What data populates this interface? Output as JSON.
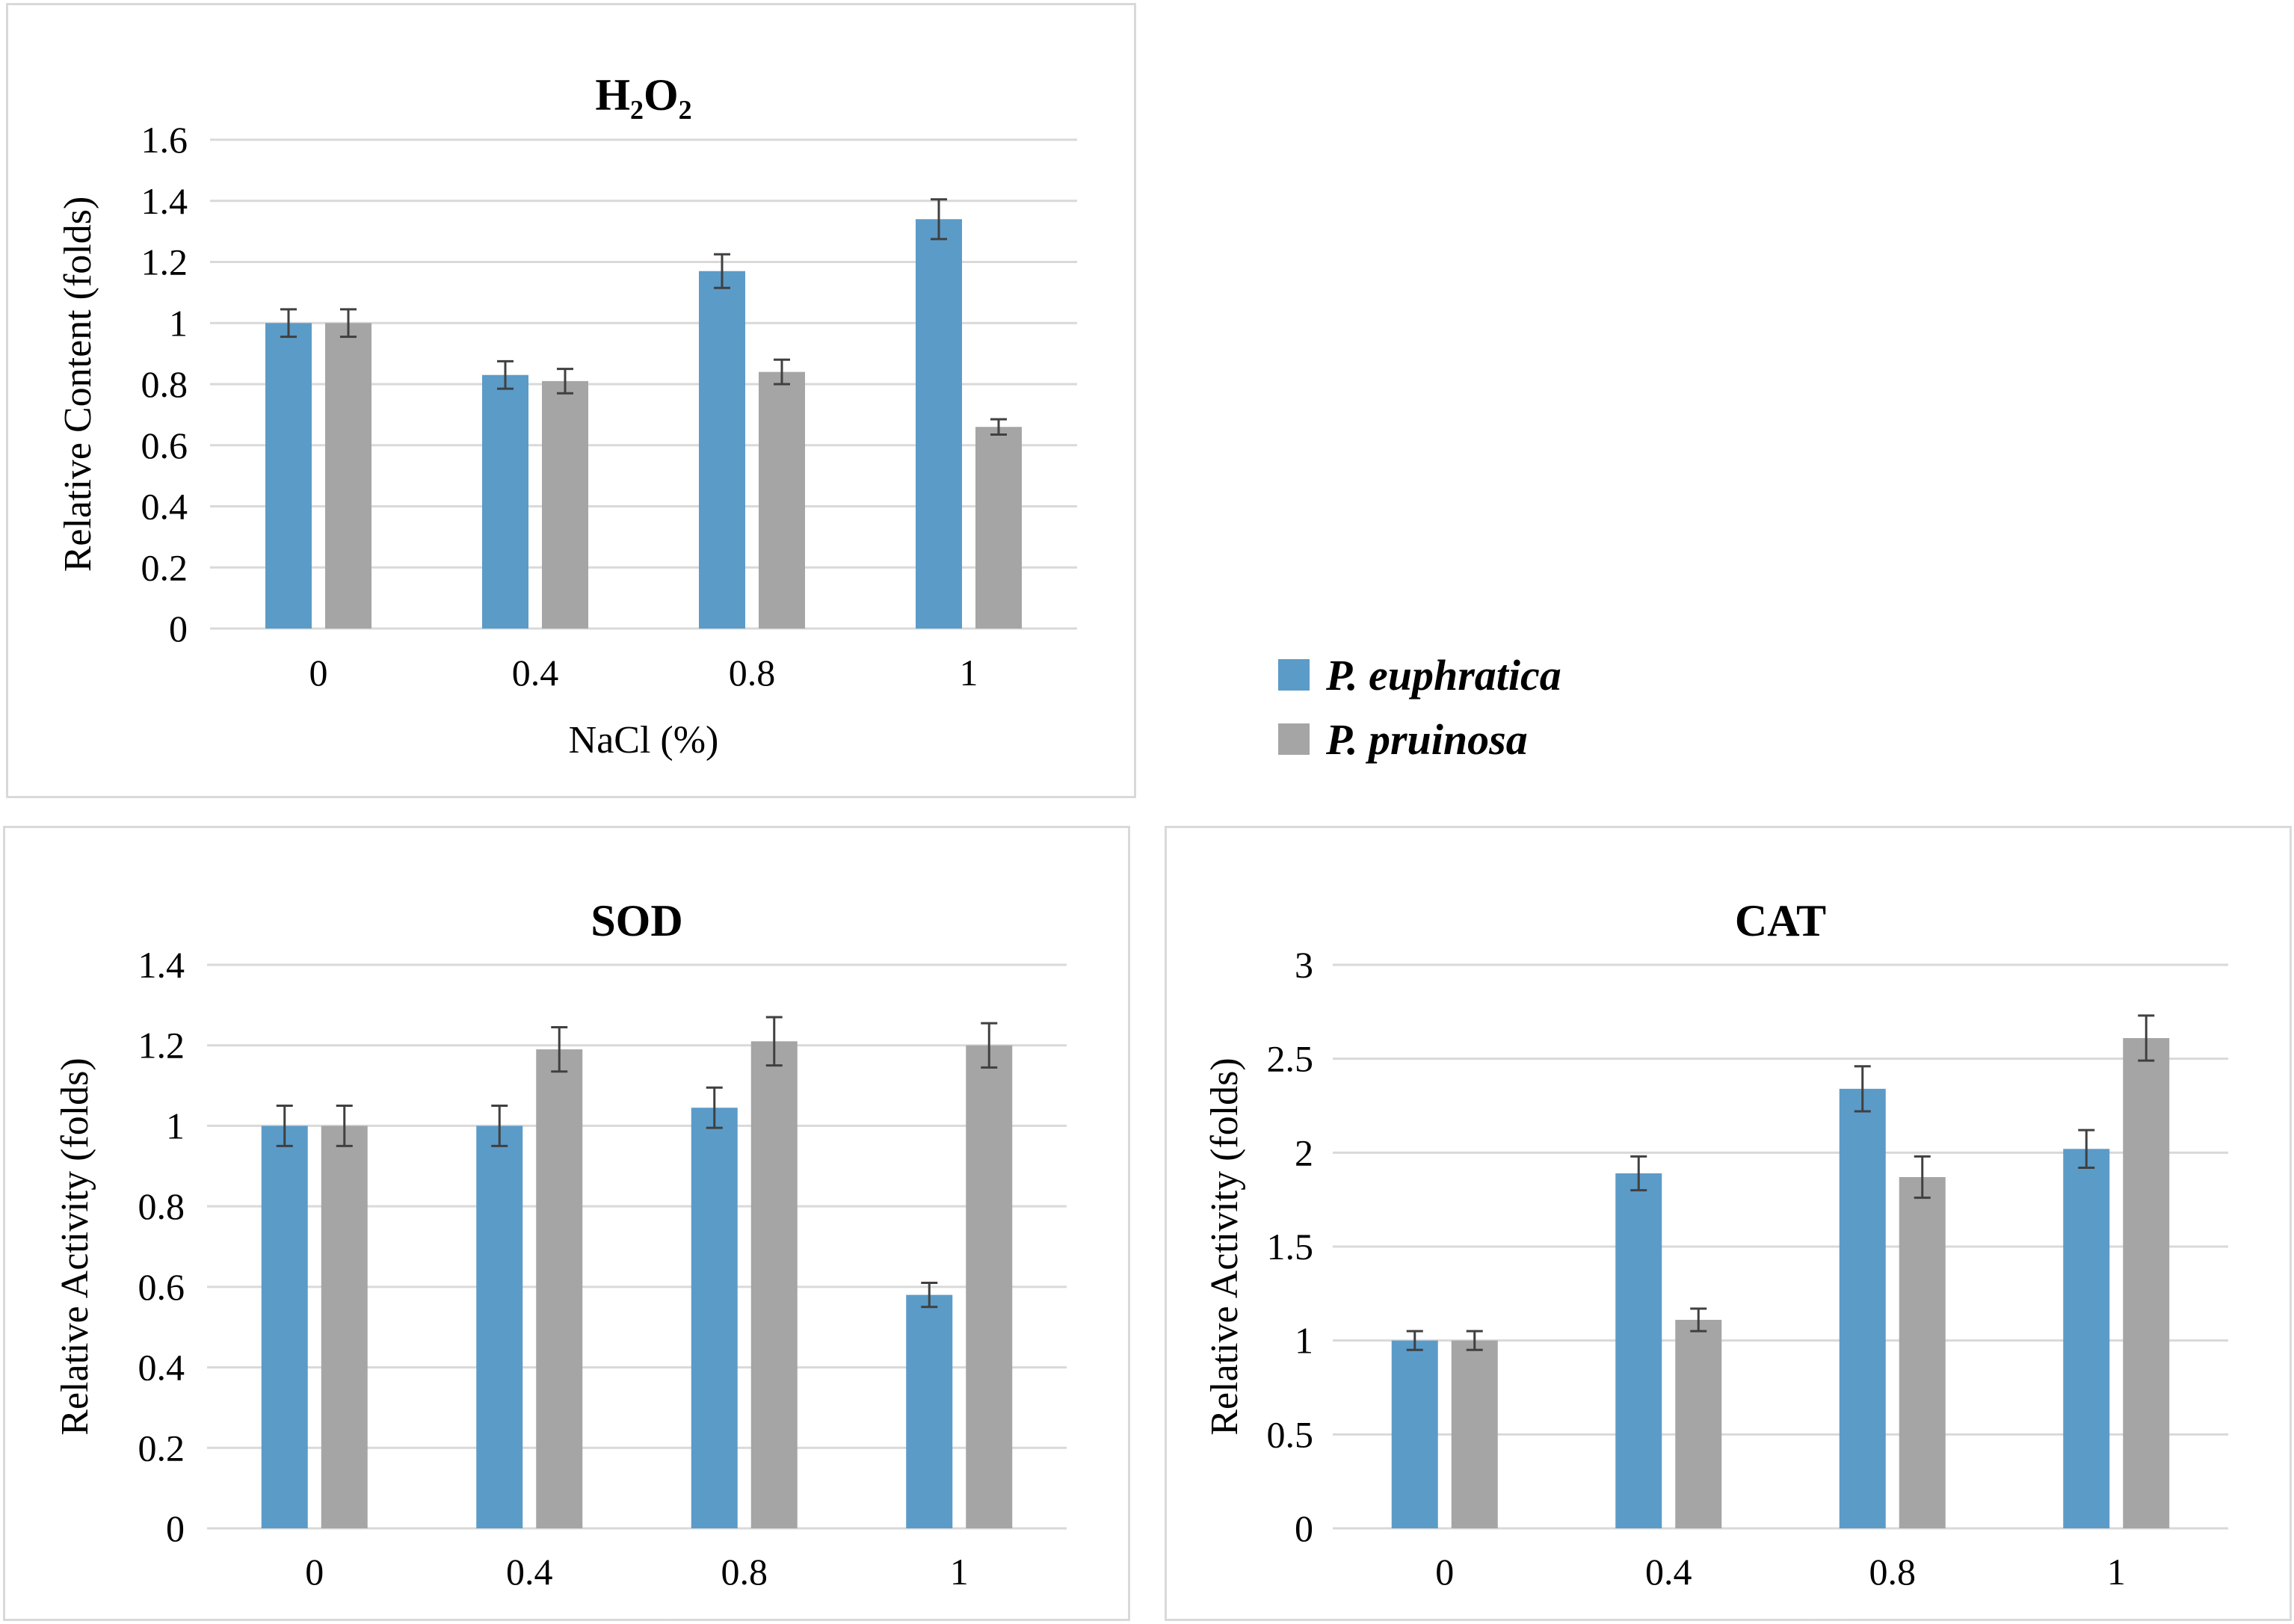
{
  "colors": {
    "euphratica": "#5b9bc8",
    "pruinosa": "#a5a5a5",
    "grid": "#d9d9d9",
    "errorbar": "#404040"
  },
  "legend": {
    "items": [
      "P. euphratica",
      "P. pruinosa"
    ]
  },
  "chart_data": [
    {
      "id": "h2o2",
      "type": "bar",
      "title": "H₂O₂",
      "xlabel": "NaCl (%)",
      "ylabel": "Relative  Content  (folds)",
      "categories": [
        "0",
        "0.4",
        "0.8",
        "1"
      ],
      "ylim": [
        0,
        1.6
      ],
      "yticks": [
        "0",
        "0.2",
        "0.4",
        "0.6",
        "0.8",
        "1",
        "1.2",
        "1.4",
        "1.6"
      ],
      "series": [
        {
          "name": "P. euphratica",
          "values": [
            1.0,
            0.83,
            1.17,
            1.34
          ],
          "errors": [
            0.045,
            0.045,
            0.055,
            0.065
          ]
        },
        {
          "name": "P. pruinosa",
          "values": [
            1.0,
            0.81,
            0.84,
            0.66
          ],
          "errors": [
            0.045,
            0.04,
            0.04,
            0.025
          ]
        }
      ]
    },
    {
      "id": "sod",
      "type": "bar",
      "title": "SOD",
      "xlabel": "NaCl (%)",
      "ylabel": "Relative  Activity  (folds)",
      "categories": [
        "0",
        "0.4",
        "0.8",
        "1"
      ],
      "ylim": [
        0,
        1.4
      ],
      "yticks": [
        "0",
        "0.2",
        "0.4",
        "0.6",
        "0.8",
        "1",
        "1.2",
        "1.4"
      ],
      "series": [
        {
          "name": "P. euphratica",
          "values": [
            1.0,
            1.0,
            1.045,
            0.58
          ],
          "errors": [
            0.05,
            0.05,
            0.05,
            0.03
          ]
        },
        {
          "name": "P. pruinosa",
          "values": [
            1.0,
            1.19,
            1.21,
            1.2
          ],
          "errors": [
            0.05,
            0.055,
            0.06,
            0.055
          ]
        }
      ]
    },
    {
      "id": "cat",
      "type": "bar",
      "title": "CAT",
      "xlabel": "NaCl (%)",
      "ylabel": "Relative  Activity  (folds)",
      "categories": [
        "0",
        "0.4",
        "0.8",
        "1"
      ],
      "ylim": [
        0,
        3
      ],
      "yticks": [
        "0",
        "0.5",
        "1",
        "1.5",
        "2",
        "2.5",
        "3"
      ],
      "series": [
        {
          "name": "P. euphratica",
          "values": [
            1.0,
            1.89,
            2.34,
            2.02
          ],
          "errors": [
            0.05,
            0.09,
            0.12,
            0.1
          ]
        },
        {
          "name": "P. pruinosa",
          "values": [
            1.0,
            1.11,
            1.87,
            2.61
          ],
          "errors": [
            0.05,
            0.06,
            0.11,
            0.12
          ]
        }
      ]
    }
  ]
}
